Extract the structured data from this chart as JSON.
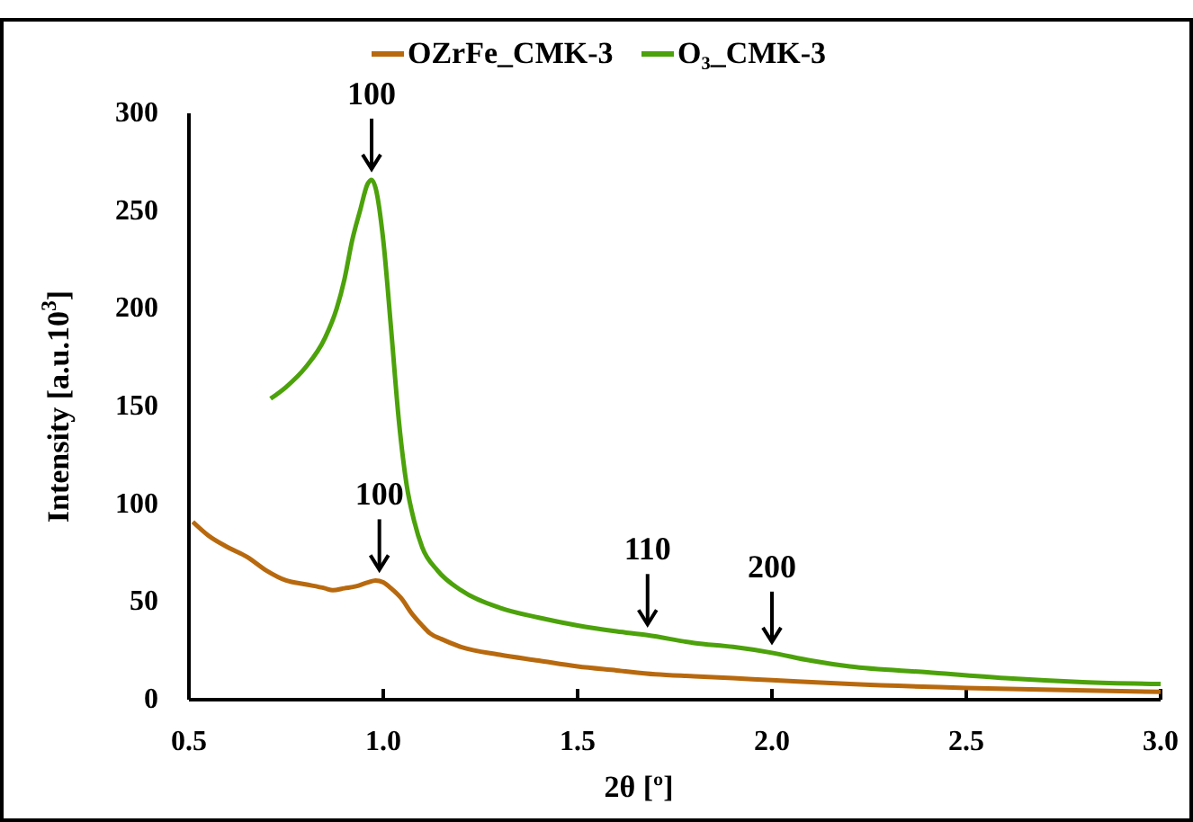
{
  "chart_data": {
    "type": "line",
    "xlabel": "2θ [º]",
    "ylabel": "Intensity [a.u.10$^{3}$]",
    "xlim": [
      0.5,
      3.0
    ],
    "xticks": [
      {
        "value": 0.5,
        "label": "0.5"
      },
      {
        "value": 1.0,
        "label": "1.0"
      },
      {
        "value": 1.5,
        "label": "1.5"
      },
      {
        "value": 2.0,
        "label": "2.0"
      },
      {
        "value": 2.5,
        "label": "2.5"
      },
      {
        "value": 3.0,
        "label": "3.0"
      }
    ],
    "ylim": [
      0,
      300
    ],
    "yticks": [
      0,
      50,
      100,
      150,
      200,
      250,
      300
    ],
    "grid": false,
    "legend": "top",
    "marker": "none",
    "series": [
      {
        "name": "OZrFe_CMK-3",
        "color": "#b8690e",
        "x": [
          0.51,
          0.55,
          0.6,
          0.65,
          0.7,
          0.75,
          0.8,
          0.85,
          0.87,
          0.9,
          0.93,
          0.96,
          0.98,
          1.0,
          1.02,
          1.05,
          1.07,
          1.1,
          1.12,
          1.15,
          1.2,
          1.3,
          1.4,
          1.5,
          1.6,
          1.7,
          1.8,
          1.9,
          2.0,
          2.2,
          2.5,
          2.75,
          3.0
        ],
        "values": [
          91,
          84,
          78,
          73,
          66,
          61,
          59,
          57,
          56,
          57,
          58,
          60,
          61,
          60,
          57,
          51,
          45,
          38,
          34,
          31,
          27,
          23,
          20,
          17,
          15,
          13,
          12,
          11,
          10,
          8,
          6,
          5,
          4
        ]
      },
      {
        "name": "O₃_CMK-3",
        "color": "#4ca20a",
        "x": [
          0.71,
          0.75,
          0.8,
          0.85,
          0.88,
          0.9,
          0.92,
          0.94,
          0.96,
          0.97,
          0.98,
          1.0,
          1.02,
          1.04,
          1.06,
          1.08,
          1.1,
          1.14,
          1.2,
          1.3,
          1.4,
          1.5,
          1.6,
          1.68,
          1.8,
          1.9,
          2.0,
          2.1,
          2.2,
          2.4,
          2.6,
          2.8,
          3.0
        ],
        "values": [
          154,
          160,
          170,
          185,
          200,
          215,
          235,
          250,
          264,
          266,
          262,
          235,
          190,
          143,
          110,
          91,
          78,
          66,
          56,
          47,
          42,
          38,
          35,
          33,
          29,
          27,
          24,
          20,
          17,
          14,
          11,
          9,
          8
        ]
      }
    ],
    "annotations": [
      {
        "text": "100",
        "x": 0.97,
        "y": 266
      },
      {
        "text": "100",
        "x": 0.99,
        "y": 61
      },
      {
        "text": "110",
        "x": 1.68,
        "y": 33
      },
      {
        "text": "200",
        "x": 2.0,
        "y": 24
      }
    ]
  }
}
